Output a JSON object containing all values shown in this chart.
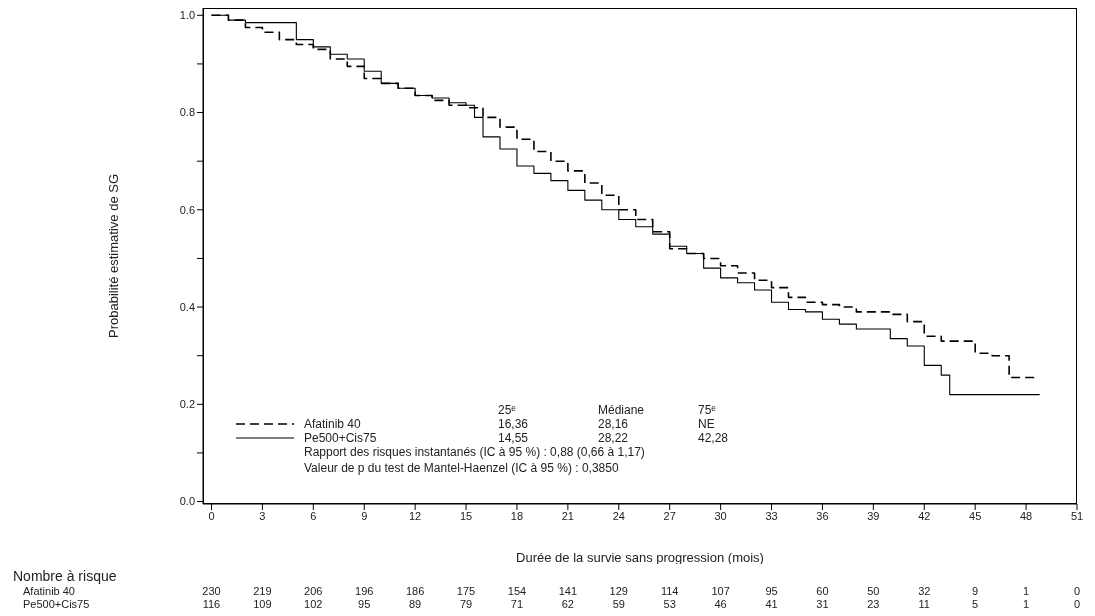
{
  "chart_data": {
    "type": "step",
    "xlabel": "Durée de la survie sans progression (mois)",
    "ylabel": "Probabilité estimative de SG",
    "xlim": [
      -0.5,
      51
    ],
    "ylim": [
      -0.005,
      1.015
    ],
    "xticks": [
      0,
      3,
      6,
      9,
      12,
      15,
      18,
      21,
      24,
      27,
      30,
      33,
      36,
      39,
      42,
      45,
      48,
      51
    ],
    "yticks": [
      {
        "value": 0,
        "label": "0.0"
      },
      {
        "value": 0.1,
        "label": null
      },
      {
        "value": 0.2,
        "label": "0.2"
      },
      {
        "value": 0.3,
        "label": null
      },
      {
        "value": 0.4,
        "label": "0.4"
      },
      {
        "value": 0.5,
        "label": null
      },
      {
        "value": 0.6,
        "label": "0.6"
      },
      {
        "value": 0.7,
        "label": null
      },
      {
        "value": 0.8,
        "label": "0.8"
      },
      {
        "value": 0.9,
        "label": null
      },
      {
        "value": 1,
        "label": "1.0"
      }
    ],
    "legend": "bottom left",
    "series": [
      {
        "name": "Afatinib 40",
        "color": "#000000",
        "line_style": "dashed",
        "x": [
          0,
          1,
          2,
          3,
          4,
          5,
          6,
          7,
          8,
          9,
          10,
          11,
          12,
          13,
          14,
          15,
          16,
          17,
          18,
          19,
          20,
          21,
          22,
          23,
          24,
          25,
          26,
          27,
          28,
          29,
          30,
          31,
          32,
          33,
          34,
          35,
          36,
          37,
          38,
          39,
          40,
          41,
          42,
          43,
          44,
          45,
          46,
          47,
          48.6
        ],
        "values": [
          1.0,
          0.99,
          0.975,
          0.965,
          0.95,
          0.94,
          0.93,
          0.91,
          0.895,
          0.87,
          0.86,
          0.85,
          0.835,
          0.825,
          0.815,
          0.81,
          0.79,
          0.77,
          0.745,
          0.72,
          0.7,
          0.68,
          0.655,
          0.63,
          0.6,
          0.58,
          0.555,
          0.52,
          0.51,
          0.5,
          0.485,
          0.47,
          0.455,
          0.44,
          0.42,
          0.41,
          0.405,
          0.4,
          0.39,
          0.39,
          0.385,
          0.37,
          0.34,
          0.33,
          0.33,
          0.305,
          0.3,
          0.255,
          0.255
        ]
      },
      {
        "name": "Pe500+Cis75",
        "color": "#000000",
        "line_style": "solid",
        "x": [
          0,
          1,
          2,
          4.5,
          5,
          6,
          7,
          8,
          9,
          10,
          11,
          12,
          13,
          14,
          15,
          15.5,
          16,
          17,
          18,
          19,
          20,
          21,
          22,
          23,
          24,
          25,
          26,
          27,
          28,
          29,
          30,
          31,
          32,
          33,
          34,
          35,
          36,
          37,
          38,
          39,
          40,
          41,
          42,
          43,
          43.5,
          48.8
        ],
        "values": [
          1.0,
          0.99,
          0.985,
          0.985,
          0.95,
          0.935,
          0.92,
          0.91,
          0.885,
          0.86,
          0.85,
          0.835,
          0.83,
          0.82,
          0.815,
          0.79,
          0.75,
          0.725,
          0.69,
          0.675,
          0.66,
          0.64,
          0.62,
          0.6,
          0.58,
          0.565,
          0.55,
          0.525,
          0.51,
          0.48,
          0.46,
          0.45,
          0.435,
          0.41,
          0.395,
          0.39,
          0.375,
          0.365,
          0.355,
          0.355,
          0.335,
          0.32,
          0.28,
          0.26,
          0.22,
          0.22
        ]
      }
    ],
    "annotations": [
      "25ᵉ",
      "Médiane",
      "75ᵉ",
      "16,36",
      "28,16",
      "NE",
      "14,55",
      "28,22",
      "42,28",
      "Rapport des risques instantanés (IC à 95 %) : 0,88 (0,66 à 1,17)",
      "Valeur de p du test de Mantel-Haenzel (IC à 95 %) : 0,3850",
      "Nombre à risque",
      "230 219 206 196 186 175 154 141 129 114 107 95 60 50 32 9 1 0",
      "116 109 102 95 89 79 71 62 59 53 46 41 31 23 11 5 1 0"
    ]
  }
}
